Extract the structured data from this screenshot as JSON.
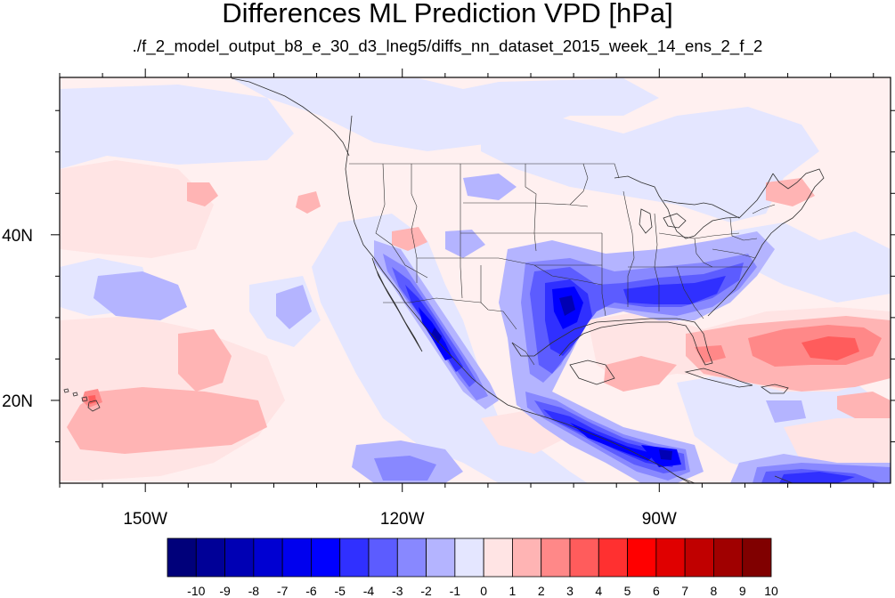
{
  "title": "Differences ML Prediction VPD [hPa]",
  "subtitle": "./f_2_model_output_b8_e_30_d3_lneg5/diffs_nn_dataset_2015_week_14_ens_2_f_2",
  "map": {
    "lon_range": [
      -160,
      -63
    ],
    "lat_range": [
      10,
      59
    ],
    "projection": "cylindrical-equidistant",
    "background_value_color": "#fff0f0"
  },
  "axes": {
    "x_ticks": [
      {
        "lon": -150,
        "label": "150W"
      },
      {
        "lon": -120,
        "label": "120W"
      },
      {
        "lon": -90,
        "label": "90W"
      }
    ],
    "y_ticks": [
      {
        "lat": 40,
        "label": "40N"
      },
      {
        "lat": 20,
        "label": "20N"
      }
    ]
  },
  "colorbar": {
    "labels": [
      "-10",
      "-9",
      "-8",
      "-7",
      "-6",
      "-5",
      "-4",
      "-3",
      "-2",
      "-1",
      "0",
      "1",
      "2",
      "3",
      "4",
      "5",
      "6",
      "7",
      "8",
      "9",
      "10"
    ],
    "colors": [
      "#00007a",
      "#000097",
      "#0000b4",
      "#0000d2",
      "#0000ee",
      "#0000ff",
      "#3030ff",
      "#5c5cff",
      "#8888ff",
      "#b4b4ff",
      "#e4e6ff",
      "#ffe4e4",
      "#ffb4b4",
      "#ff8888",
      "#ff5c5c",
      "#ff3030",
      "#ff0000",
      "#e00000",
      "#c00000",
      "#a00000",
      "#800000"
    ]
  }
}
